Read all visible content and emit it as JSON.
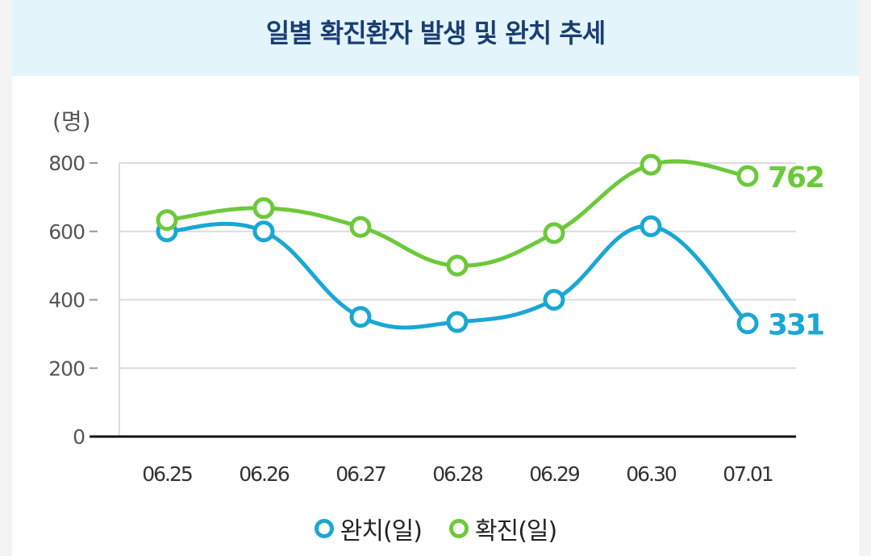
{
  "title": "일별 확진환자 발생 및 완치 추세",
  "colors": {
    "recovered": "#1aa7d4",
    "confirmed": "#6cc93a",
    "grid": "#dcdcdc",
    "axis": "#111111",
    "tick": "#555555"
  },
  "chart_data": {
    "type": "line",
    "title": "일별 확진환자 발생 및 완치 추세",
    "unit_label": "(명)",
    "categories": [
      "06.25",
      "06.26",
      "06.27",
      "06.28",
      "06.29",
      "06.30",
      "07.01"
    ],
    "y_ticks": [
      "0",
      "200",
      "400",
      "600",
      "800"
    ],
    "ylim": [
      0,
      800
    ],
    "grid": true,
    "legend_position": "bottom-center",
    "series": [
      {
        "name": "완치(일)",
        "color": "#1aa7d4",
        "values": [
          600,
          600,
          350,
          335,
          400,
          615,
          331
        ],
        "end_label": "331"
      },
      {
        "name": "확진(일)",
        "color": "#6cc93a",
        "values": [
          633,
          668,
          613,
          500,
          595,
          795,
          762
        ],
        "end_label": "762"
      }
    ]
  }
}
